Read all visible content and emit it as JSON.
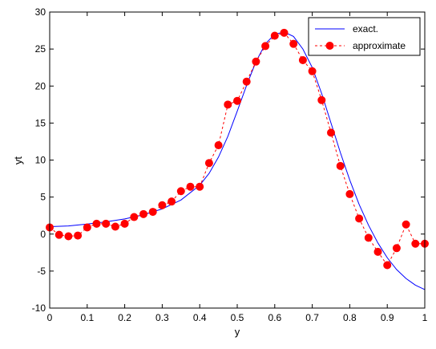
{
  "chart_data": {
    "type": "line",
    "title": "",
    "xlabel": "y",
    "ylabel": "yt",
    "xlim": [
      0,
      1
    ],
    "ylim": [
      -10,
      30
    ],
    "xticks": [
      0,
      0.1,
      0.2,
      0.3,
      0.4,
      0.5,
      0.6,
      0.7,
      0.8,
      0.9,
      1
    ],
    "xtick_labels": [
      "0",
      "0.1",
      "0.2",
      "0.3",
      "0.4",
      "0.5",
      "0.6",
      "0.7",
      "0.8",
      "0.9",
      "1"
    ],
    "yticks": [
      -10,
      -5,
      0,
      5,
      10,
      15,
      20,
      25,
      30
    ],
    "ytick_labels": [
      "-10",
      "-5",
      "0",
      "5",
      "10",
      "15",
      "20",
      "25",
      "30"
    ],
    "grid": false,
    "legend_position": "top-right",
    "series": [
      {
        "name": "exact.",
        "style": "solid",
        "color": "#0000ff",
        "x": [
          0,
          0.05,
          0.1,
          0.15,
          0.2,
          0.25,
          0.3,
          0.35,
          0.4,
          0.425,
          0.45,
          0.475,
          0.5,
          0.525,
          0.55,
          0.575,
          0.6,
          0.625,
          0.65,
          0.675,
          0.7,
          0.725,
          0.75,
          0.775,
          0.8,
          0.825,
          0.85,
          0.875,
          0.9,
          0.925,
          0.95,
          0.975,
          1.0
        ],
        "y": [
          1.0,
          1.1,
          1.35,
          1.65,
          2.05,
          2.6,
          3.4,
          4.6,
          6.6,
          8.2,
          10.4,
          13.2,
          16.6,
          20.1,
          23.3,
          25.7,
          27.0,
          27.3,
          26.7,
          25.0,
          22.5,
          19.0,
          15.0,
          11.0,
          7.3,
          4.0,
          1.2,
          -1.2,
          -3.2,
          -4.8,
          -6.0,
          -6.9,
          -7.5
        ]
      },
      {
        "name": "approximate",
        "style": "dashed",
        "marker": "circle",
        "color": "#ff0000",
        "x": [
          0,
          0.025,
          0.05,
          0.075,
          0.1,
          0.125,
          0.15,
          0.175,
          0.2,
          0.225,
          0.25,
          0.275,
          0.3,
          0.325,
          0.35,
          0.375,
          0.4,
          0.425,
          0.45,
          0.475,
          0.5,
          0.525,
          0.55,
          0.575,
          0.6,
          0.625,
          0.65,
          0.675,
          0.7,
          0.725,
          0.75,
          0.775,
          0.8,
          0.825,
          0.85,
          0.875,
          0.9,
          0.925,
          0.95,
          0.975,
          1.0
        ],
        "y": [
          0.9,
          -0.1,
          -0.3,
          -0.2,
          0.9,
          1.4,
          1.4,
          1.0,
          1.4,
          2.3,
          2.7,
          3.0,
          3.9,
          4.4,
          5.8,
          6.4,
          6.4,
          9.6,
          12.0,
          17.5,
          18.0,
          20.6,
          23.3,
          25.4,
          26.8,
          27.2,
          25.7,
          23.5,
          22.0,
          18.1,
          13.7,
          9.2,
          5.4,
          2.1,
          -0.5,
          -2.4,
          -4.2,
          -1.9,
          1.3,
          -1.3,
          -1.3
        ]
      }
    ]
  }
}
